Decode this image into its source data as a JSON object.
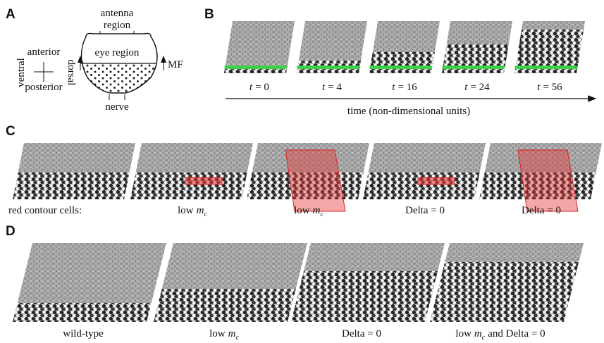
{
  "panel_a": {
    "label": "A",
    "antenna": "antenna",
    "region": "region",
    "eye_region": "eye region",
    "mf": "MF",
    "anterior": "anterior",
    "posterior": "posterior",
    "ventral": "ventral",
    "dorsal": "dorsal",
    "nerve": "nerve"
  },
  "panel_b": {
    "label": "B",
    "time_labels": [
      [
        {
          "italic": "t"
        },
        {
          "text": "= 0"
        }
      ],
      [
        {
          "italic": "t"
        },
        {
          "text": "= 4"
        }
      ],
      [
        {
          "italic": "t"
        },
        {
          "text": "= 16"
        }
      ],
      [
        {
          "italic": "t"
        },
        {
          "text": "= 24"
        }
      ],
      [
        {
          "italic": "t"
        },
        {
          "text": "= 56"
        }
      ]
    ],
    "axis_label": "time (non-dimensional units)"
  },
  "panel_c": {
    "label": "C",
    "row_label": "red contour cells:",
    "conditions": [
      [
        {
          "text": "low"
        },
        {
          "italic": "m"
        },
        {
          "sub": "c"
        }
      ],
      [
        {
          "text": "low"
        },
        {
          "italic": "m"
        },
        {
          "sub": "c"
        }
      ],
      [
        {
          "text": "Delta = 0"
        }
      ],
      [
        {
          "text": "Delta = 0"
        }
      ]
    ]
  },
  "panel_d": {
    "label": "D",
    "conditions": [
      [
        {
          "text": "wild-type"
        }
      ],
      [
        {
          "text": "low"
        },
        {
          "italic": "m"
        },
        {
          "sub": "c"
        }
      ],
      [
        {
          "text": "Delta = 0"
        }
      ],
      [
        {
          "text": "low"
        },
        {
          "italic": "m"
        },
        {
          "sub": "c"
        },
        {
          "text": "and Delta = 0"
        }
      ]
    ]
  }
}
